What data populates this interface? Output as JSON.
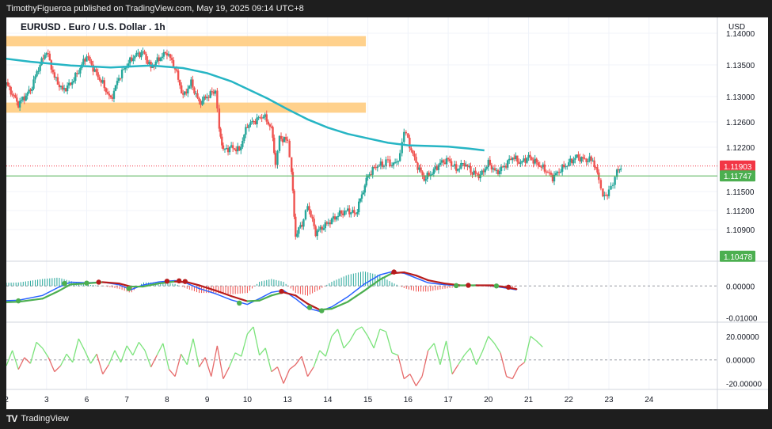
{
  "header": {
    "publisher_line": "TimothyFigueroa published on TradingView.com, May 19, 2025 09:14 UTC+8"
  },
  "footer": {
    "brand": "TradingView",
    "brand_logo_text": "TV"
  },
  "chart_data": {
    "type": "candlestick",
    "title": "EURUSD . Euro / U.S. Dollar . 1h",
    "currency": "USD",
    "price_axis": {
      "ticks": [
        "1.14000",
        "1.13500",
        "1.13000",
        "1.12600",
        "1.12200",
        "1.11500",
        "1.11200",
        "1.10900"
      ],
      "range": [
        1.104,
        1.1425
      ]
    },
    "x_axis": {
      "ticks": [
        "2",
        "3",
        "6",
        "7",
        "8",
        "9",
        "10",
        "13",
        "14",
        "15",
        "16",
        "17",
        "20",
        "21",
        "22",
        "23",
        "24"
      ],
      "range": [
        0,
        17.7
      ]
    },
    "price_labels": [
      {
        "value": 1.11903,
        "text": "1.11903",
        "color": "#f23645"
      },
      {
        "value": 1.11747,
        "text": "1.11747",
        "color": "#4caf50"
      },
      {
        "value": 1.10478,
        "text": "1.10478",
        "color": "#4caf50"
      }
    ],
    "zones": [
      {
        "name": "upper-resistance-zone",
        "from_x": -0.3,
        "to_x": 8.95,
        "low": 1.13795,
        "high": 1.13955,
        "color": "#ffcc80"
      },
      {
        "name": "lower-support-zone",
        "from_x": -0.3,
        "to_x": 8.95,
        "low": 1.12745,
        "high": 1.12905,
        "color": "#ffcc80"
      }
    ],
    "ma_color": "#26b5c4",
    "ma_path": [
      [
        -0.3,
        1.1362
      ],
      [
        0.6,
        1.1355
      ],
      [
        1.6,
        1.1349
      ],
      [
        2.6,
        1.1346
      ],
      [
        3.6,
        1.1349
      ],
      [
        4.4,
        1.1345
      ],
      [
        5.0,
        1.1337
      ],
      [
        5.6,
        1.1324
      ],
      [
        6.0,
        1.1312
      ],
      [
        6.5,
        1.1297
      ],
      [
        7.0,
        1.128
      ],
      [
        7.5,
        1.1264
      ],
      [
        8.0,
        1.1251
      ],
      [
        8.5,
        1.1241
      ],
      [
        9.0,
        1.1234
      ],
      [
        9.5,
        1.1227
      ],
      [
        10.0,
        1.1223
      ],
      [
        10.5,
        1.1222
      ],
      [
        11.0,
        1.1221
      ],
      [
        11.5,
        1.1218
      ],
      [
        11.9,
        1.1215
      ]
    ],
    "price_path": [
      [
        -0.3,
        1.136
      ],
      [
        0.0,
        1.132
      ],
      [
        0.3,
        1.1288
      ],
      [
        0.6,
        1.131
      ],
      [
        0.8,
        1.1345
      ],
      [
        1.0,
        1.1372
      ],
      [
        1.2,
        1.133
      ],
      [
        1.4,
        1.131
      ],
      [
        1.6,
        1.132
      ],
      [
        1.8,
        1.134
      ],
      [
        2.0,
        1.1365
      ],
      [
        2.2,
        1.134
      ],
      [
        2.4,
        1.132
      ],
      [
        2.6,
        1.1295
      ],
      [
        2.8,
        1.133
      ],
      [
        3.0,
        1.135
      ],
      [
        3.2,
        1.1365
      ],
      [
        3.4,
        1.137
      ],
      [
        3.6,
        1.1345
      ],
      [
        3.8,
        1.136
      ],
      [
        4.0,
        1.137
      ],
      [
        4.2,
        1.1345
      ],
      [
        4.4,
        1.13
      ],
      [
        4.6,
        1.1322
      ],
      [
        4.8,
        1.129
      ],
      [
        5.0,
        1.13
      ],
      [
        5.2,
        1.131
      ],
      [
        5.3,
        1.125
      ],
      [
        5.4,
        1.1215
      ],
      [
        5.6,
        1.122
      ],
      [
        5.8,
        1.1215
      ],
      [
        6.0,
        1.1255
      ],
      [
        6.2,
        1.1262
      ],
      [
        6.4,
        1.127
      ],
      [
        6.6,
        1.125
      ],
      [
        6.7,
        1.1195
      ],
      [
        6.8,
        1.1235
      ],
      [
        7.0,
        1.123
      ],
      [
        7.1,
        1.118
      ],
      [
        7.2,
        1.108
      ],
      [
        7.4,
        1.1105
      ],
      [
        7.5,
        1.113
      ],
      [
        7.7,
        1.1085
      ],
      [
        7.9,
        1.1095
      ],
      [
        8.1,
        1.1105
      ],
      [
        8.3,
        1.1115
      ],
      [
        8.5,
        1.112
      ],
      [
        8.7,
        1.1115
      ],
      [
        8.85,
        1.1145
      ],
      [
        9.0,
        1.1175
      ],
      [
        9.2,
        1.119
      ],
      [
        9.4,
        1.1193
      ],
      [
        9.5,
        1.12
      ],
      [
        9.6,
        1.119
      ],
      [
        9.8,
        1.1205
      ],
      [
        9.9,
        1.125
      ],
      [
        10.0,
        1.123
      ],
      [
        10.2,
        1.1195
      ],
      [
        10.4,
        1.117
      ],
      [
        10.6,
        1.118
      ],
      [
        10.8,
        1.1195
      ],
      [
        11.0,
        1.12
      ],
      [
        11.2,
        1.1185
      ],
      [
        11.4,
        1.1195
      ],
      [
        11.6,
        1.118
      ],
      [
        11.8,
        1.1175
      ],
      [
        12.0,
        1.1195
      ],
      [
        12.2,
        1.118
      ],
      [
        12.4,
        1.119
      ],
      [
        12.6,
        1.1205
      ],
      [
        12.8,
        1.1195
      ],
      [
        13.0,
        1.1205
      ],
      [
        13.2,
        1.1195
      ],
      [
        13.4,
        1.1185
      ],
      [
        13.6,
        1.1172
      ],
      [
        13.8,
        1.1185
      ],
      [
        14.0,
        1.1195
      ],
      [
        14.2,
        1.1205
      ],
      [
        14.4,
        1.12
      ],
      [
        14.6,
        1.12
      ],
      [
        14.75,
        1.117
      ],
      [
        14.85,
        1.114
      ],
      [
        15.0,
        1.115
      ],
      [
        15.1,
        1.1165
      ],
      [
        15.2,
        1.118
      ],
      [
        15.3,
        1.119
      ]
    ],
    "macd": {
      "ticks": [
        "0.00000",
        "-0.01000"
      ],
      "range": [
        -0.0114,
        0.0078
      ],
      "macd_line_color": "#2962ff",
      "signal_up_color": "#4caf50",
      "signal_down_color": "#b71c1c",
      "macd_line": [
        [
          -0.3,
          -0.0048
        ],
        [
          0.3,
          -0.0045
        ],
        [
          0.9,
          -0.003
        ],
        [
          1.3,
          -0.0004
        ],
        [
          1.6,
          0.0012
        ],
        [
          2.0,
          0.001
        ],
        [
          2.4,
          0.0012
        ],
        [
          2.8,
          0.0004
        ],
        [
          3.1,
          -0.0012
        ],
        [
          3.4,
          0.0003
        ],
        [
          3.8,
          0.0013
        ],
        [
          4.2,
          0.0017
        ],
        [
          4.5,
          0.0008
        ],
        [
          4.8,
          -0.0008
        ],
        [
          5.2,
          -0.0024
        ],
        [
          5.6,
          -0.0044
        ],
        [
          6.0,
          -0.0058
        ],
        [
          6.3,
          -0.004
        ],
        [
          6.6,
          -0.002
        ],
        [
          6.9,
          -0.0014
        ],
        [
          7.2,
          -0.004
        ],
        [
          7.5,
          -0.007
        ],
        [
          7.8,
          -0.008
        ],
        [
          8.1,
          -0.0066
        ],
        [
          8.5,
          -0.0034
        ],
        [
          8.9,
          0.0005
        ],
        [
          9.3,
          0.0035
        ],
        [
          9.6,
          0.0045
        ],
        [
          9.9,
          0.004
        ],
        [
          10.2,
          0.0025
        ],
        [
          10.5,
          0.001
        ],
        [
          10.9,
          0.0004
        ],
        [
          11.3,
          0.0001
        ],
        [
          11.7,
          0.0003
        ],
        [
          12.1,
          0.0
        ],
        [
          12.4,
          -0.0006
        ],
        [
          12.7,
          -0.0012
        ]
      ],
      "signal_line": [
        [
          -0.3,
          -0.0052
        ],
        [
          0.3,
          -0.005
        ],
        [
          0.9,
          -0.004
        ],
        [
          1.3,
          -0.0016
        ],
        [
          1.6,
          0.0005
        ],
        [
          2.0,
          0.0008
        ],
        [
          2.4,
          0.0012
        ],
        [
          2.8,
          0.0008
        ],
        [
          3.1,
          -0.0002
        ],
        [
          3.4,
          -0.0002
        ],
        [
          3.8,
          0.0008
        ],
        [
          4.2,
          0.0014
        ],
        [
          4.5,
          0.0012
        ],
        [
          4.8,
          0.0002
        ],
        [
          5.2,
          -0.0014
        ],
        [
          5.6,
          -0.0032
        ],
        [
          6.0,
          -0.0048
        ],
        [
          6.3,
          -0.0046
        ],
        [
          6.6,
          -0.003
        ],
        [
          6.9,
          -0.002
        ],
        [
          7.2,
          -0.003
        ],
        [
          7.5,
          -0.0056
        ],
        [
          7.8,
          -0.0075
        ],
        [
          8.1,
          -0.0072
        ],
        [
          8.5,
          -0.005
        ],
        [
          8.9,
          -0.0016
        ],
        [
          9.3,
          0.002
        ],
        [
          9.6,
          0.004
        ],
        [
          9.9,
          0.0043
        ],
        [
          10.2,
          0.0033
        ],
        [
          10.5,
          0.0018
        ],
        [
          10.9,
          0.0008
        ],
        [
          11.3,
          0.0002
        ],
        [
          11.7,
          0.0002
        ],
        [
          12.1,
          0.0002
        ],
        [
          12.4,
          -0.0003
        ],
        [
          12.7,
          -0.001
        ]
      ],
      "histogram_color_pos": "#26a69a",
      "histogram_color_neg": "#ef5350",
      "cross_points": [
        {
          "x": 0.3,
          "y": -0.0047,
          "color": "#4caf50"
        },
        {
          "x": 1.45,
          "y": 0.0008,
          "color": "#4caf50"
        },
        {
          "x": 2.0,
          "y": 0.0009,
          "color": "#4caf50"
        },
        {
          "x": 2.3,
          "y": 0.0012,
          "color": "#b71c1c"
        },
        {
          "x": 3.05,
          "y": -0.0008,
          "color": "#4caf50"
        },
        {
          "x": 4.0,
          "y": 0.0015,
          "color": "#b71c1c"
        },
        {
          "x": 4.3,
          "y": 0.0016,
          "color": "#b71c1c"
        },
        {
          "x": 4.45,
          "y": 0.0014,
          "color": "#b71c1c"
        },
        {
          "x": 5.8,
          "y": -0.0054,
          "color": "#4caf50"
        },
        {
          "x": 6.85,
          "y": -0.0017,
          "color": "#b71c1c"
        },
        {
          "x": 7.55,
          "y": -0.0068,
          "color": "#4caf50"
        },
        {
          "x": 7.85,
          "y": -0.0078,
          "color": "#4caf50"
        },
        {
          "x": 9.65,
          "y": 0.0044,
          "color": "#b71c1c"
        },
        {
          "x": 11.2,
          "y": 0.0001,
          "color": "#4caf50"
        },
        {
          "x": 11.5,
          "y": 0.0002,
          "color": "#b71c1c"
        },
        {
          "x": 12.2,
          "y": 0.0,
          "color": "#4caf50"
        },
        {
          "x": 12.5,
          "y": -0.0004,
          "color": "#b71c1c"
        }
      ]
    },
    "oscillator": {
      "ticks": [
        "20.00000",
        "0.00000",
        "-20.00000"
      ],
      "range": [
        -25,
        32
      ],
      "pos_color": "#7be37b",
      "neg_color": "#e66a6a",
      "values": [
        [
          -0.3,
          18
        ],
        [
          -0.15,
          5
        ],
        [
          0.0,
          -5
        ],
        [
          0.15,
          8
        ],
        [
          0.3,
          -8
        ],
        [
          0.45,
          2
        ],
        [
          0.6,
          -3
        ],
        [
          0.75,
          15
        ],
        [
          0.9,
          10
        ],
        [
          1.05,
          2
        ],
        [
          1.2,
          -10
        ],
        [
          1.35,
          -5
        ],
        [
          1.5,
          5
        ],
        [
          1.65,
          -2
        ],
        [
          1.8,
          18
        ],
        [
          1.95,
          8
        ],
        [
          2.1,
          -3
        ],
        [
          2.25,
          5
        ],
        [
          2.4,
          -12
        ],
        [
          2.55,
          -4
        ],
        [
          2.7,
          8
        ],
        [
          2.85,
          -2
        ],
        [
          3.0,
          12
        ],
        [
          3.15,
          4
        ],
        [
          3.3,
          15
        ],
        [
          3.45,
          8
        ],
        [
          3.6,
          -6
        ],
        [
          3.75,
          4
        ],
        [
          3.9,
          14
        ],
        [
          4.05,
          -8
        ],
        [
          4.2,
          -14
        ],
        [
          4.35,
          5
        ],
        [
          4.5,
          -4
        ],
        [
          4.65,
          18
        ],
        [
          4.8,
          -6
        ],
        [
          4.95,
          2
        ],
        [
          5.1,
          -14
        ],
        [
          5.25,
          12
        ],
        [
          5.4,
          -16
        ],
        [
          5.55,
          -6
        ],
        [
          5.7,
          6
        ],
        [
          5.85,
          3
        ],
        [
          6.0,
          22
        ],
        [
          6.15,
          28
        ],
        [
          6.3,
          4
        ],
        [
          6.45,
          10
        ],
        [
          6.6,
          -10
        ],
        [
          6.75,
          -6
        ],
        [
          6.9,
          -20
        ],
        [
          7.05,
          -8
        ],
        [
          7.2,
          -4
        ],
        [
          7.35,
          3
        ],
        [
          7.5,
          -14
        ],
        [
          7.65,
          -6
        ],
        [
          7.8,
          8
        ],
        [
          7.95,
          3
        ],
        [
          8.1,
          20
        ],
        [
          8.25,
          26
        ],
        [
          8.4,
          10
        ],
        [
          8.55,
          16
        ],
        [
          8.7,
          25
        ],
        [
          8.85,
          28
        ],
        [
          9.0,
          20
        ],
        [
          9.15,
          10
        ],
        [
          9.3,
          26
        ],
        [
          9.45,
          24
        ],
        [
          9.6,
          6
        ],
        [
          9.75,
          4
        ],
        [
          9.9,
          -16
        ],
        [
          10.05,
          -12
        ],
        [
          10.2,
          -22
        ],
        [
          10.35,
          -14
        ],
        [
          10.5,
          8
        ],
        [
          10.65,
          14
        ],
        [
          10.8,
          -4
        ],
        [
          10.95,
          16
        ],
        [
          11.1,
          -12
        ],
        [
          11.25,
          -4
        ],
        [
          11.4,
          4
        ],
        [
          11.55,
          10
        ],
        [
          11.7,
          -4
        ],
        [
          11.85,
          7
        ],
        [
          12.0,
          20
        ],
        [
          12.15,
          14
        ],
        [
          12.3,
          6
        ],
        [
          12.45,
          -14
        ],
        [
          12.6,
          -16
        ],
        [
          12.75,
          -6
        ],
        [
          12.9,
          -2
        ],
        [
          13.05,
          20
        ],
        [
          13.2,
          16
        ],
        [
          13.35,
          11
        ]
      ]
    }
  }
}
